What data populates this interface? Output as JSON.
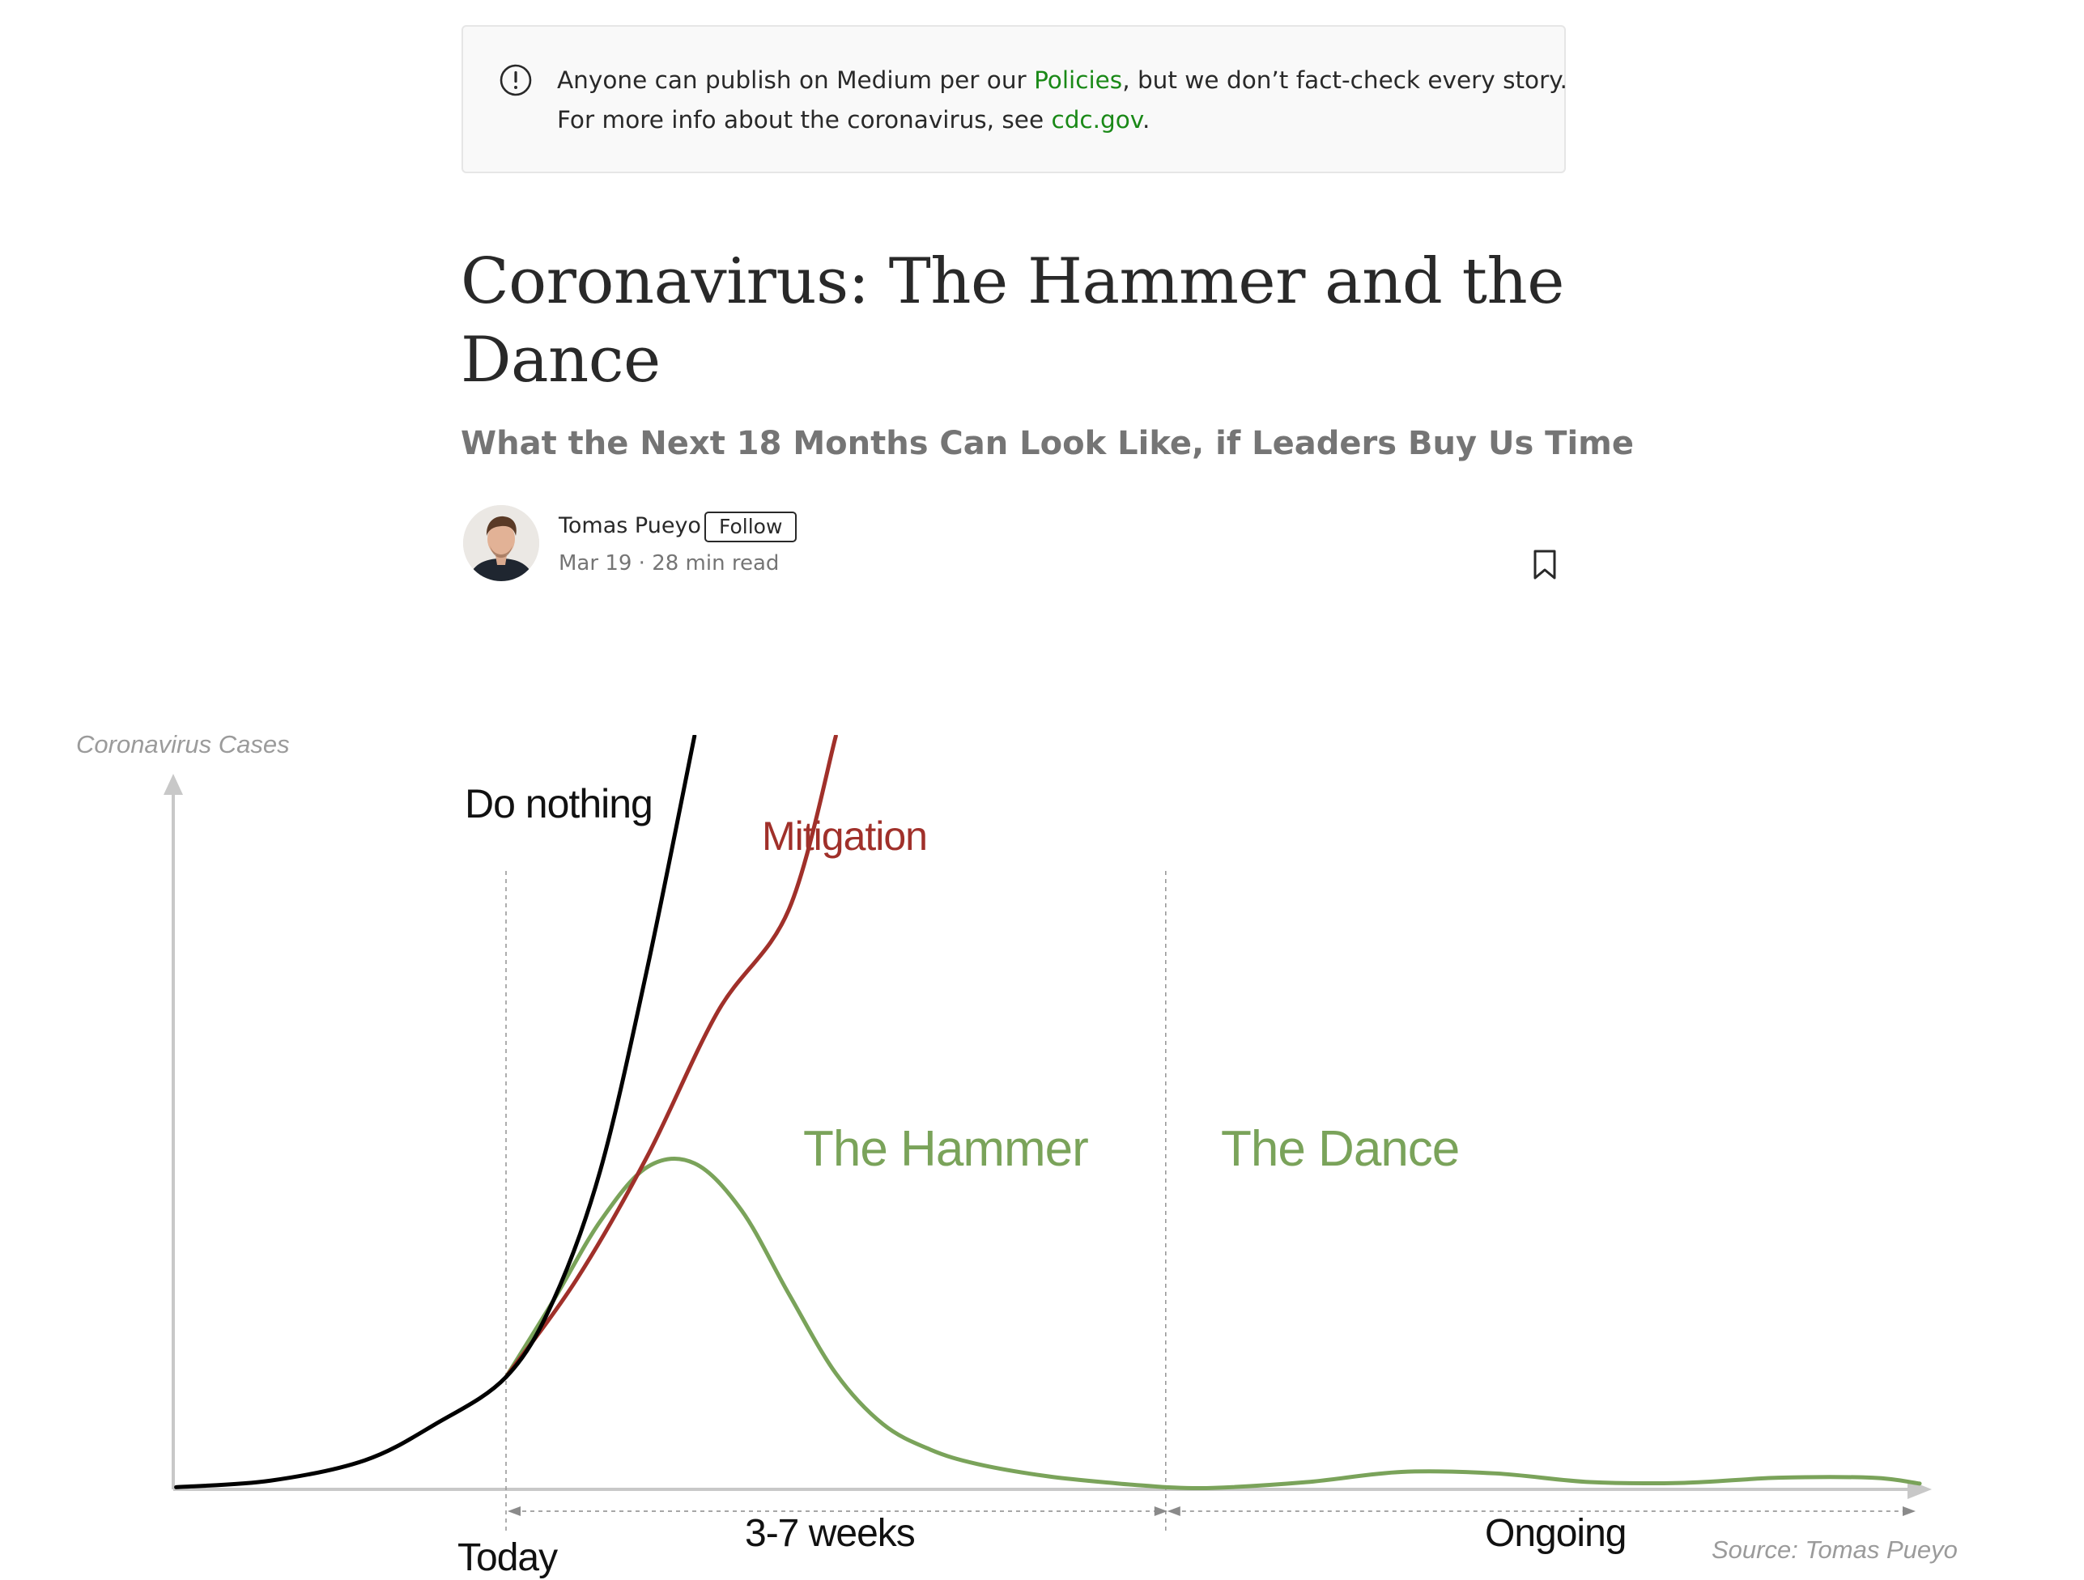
{
  "notice": {
    "icon": "exclamation-circle-icon",
    "line1_before": "Anyone can publish on Medium per our ",
    "line1_link": "Policies",
    "line1_after": ", but we don’t fact-check every story.",
    "line2_before": "For more info about the coronavirus, see ",
    "line2_link": "cdc.gov",
    "line2_after": ".",
    "link_color": "#1a8917"
  },
  "article": {
    "title": "Coronavirus: The Hammer and the Dance",
    "subtitle": "What the Next 18 Months Can Look Like, if Leaders Buy Us Time"
  },
  "author": {
    "name": "Tomas Pueyo",
    "follow_label": "Follow",
    "date": "Mar 19",
    "separator": "·",
    "read_time": "28 min read"
  },
  "actions": {
    "bookmark_icon": "bookmark-icon"
  },
  "chart_data": {
    "type": "line",
    "ylabel": "Coronavirus Cases",
    "source": "Source: Tomas Pueyo",
    "x_scale": "weeks (illustrative)",
    "series": [
      {
        "name": "Do nothing",
        "color": "#000000",
        "points": [
          [
            -7,
            0.3
          ],
          [
            -5,
            1.2
          ],
          [
            -3,
            4
          ],
          [
            -1.5,
            9
          ],
          [
            0,
            15.5
          ],
          [
            1,
            26
          ],
          [
            2,
            44
          ],
          [
            3,
            72
          ],
          [
            4,
            104
          ]
        ]
      },
      {
        "name": "Mitigation",
        "color": "#a0302a",
        "points": [
          [
            0,
            15.5
          ],
          [
            1.5,
            29
          ],
          [
            3,
            46
          ],
          [
            4.5,
            66
          ],
          [
            6,
            80
          ],
          [
            7,
            104
          ]
        ]
      },
      {
        "name": "The Hammer",
        "color": "#7aa35a",
        "points": [
          [
            0,
            15.5
          ],
          [
            1,
            26
          ],
          [
            2,
            37
          ],
          [
            3,
            44.5
          ],
          [
            4,
            45
          ],
          [
            5,
            38.5
          ],
          [
            6,
            27
          ],
          [
            7,
            16
          ],
          [
            8,
            9
          ],
          [
            9,
            5.5
          ],
          [
            10,
            3.5
          ],
          [
            11.5,
            1.8
          ],
          [
            13,
            0.8
          ],
          [
            14,
            0.3
          ]
        ]
      },
      {
        "name": "The Dance",
        "color": "#7aa35a",
        "points": [
          [
            14,
            0.3
          ],
          [
            15,
            0.2
          ],
          [
            17,
            1
          ],
          [
            19,
            2.4
          ],
          [
            21,
            2.2
          ],
          [
            23,
            1
          ],
          [
            25,
            0.9
          ],
          [
            27,
            1.6
          ],
          [
            29,
            1.6
          ],
          [
            30,
            0.8
          ]
        ]
      }
    ],
    "markers": [
      {
        "label": "Today",
        "x": 0
      },
      {
        "label": "",
        "x": 14
      }
    ],
    "intervals": [
      {
        "label": "3-7 weeks",
        "from": 0,
        "to": 14
      },
      {
        "label": "Ongoing",
        "from": 14,
        "to": 30
      }
    ],
    "axis_color": "#c8c8c8",
    "grid": false
  }
}
